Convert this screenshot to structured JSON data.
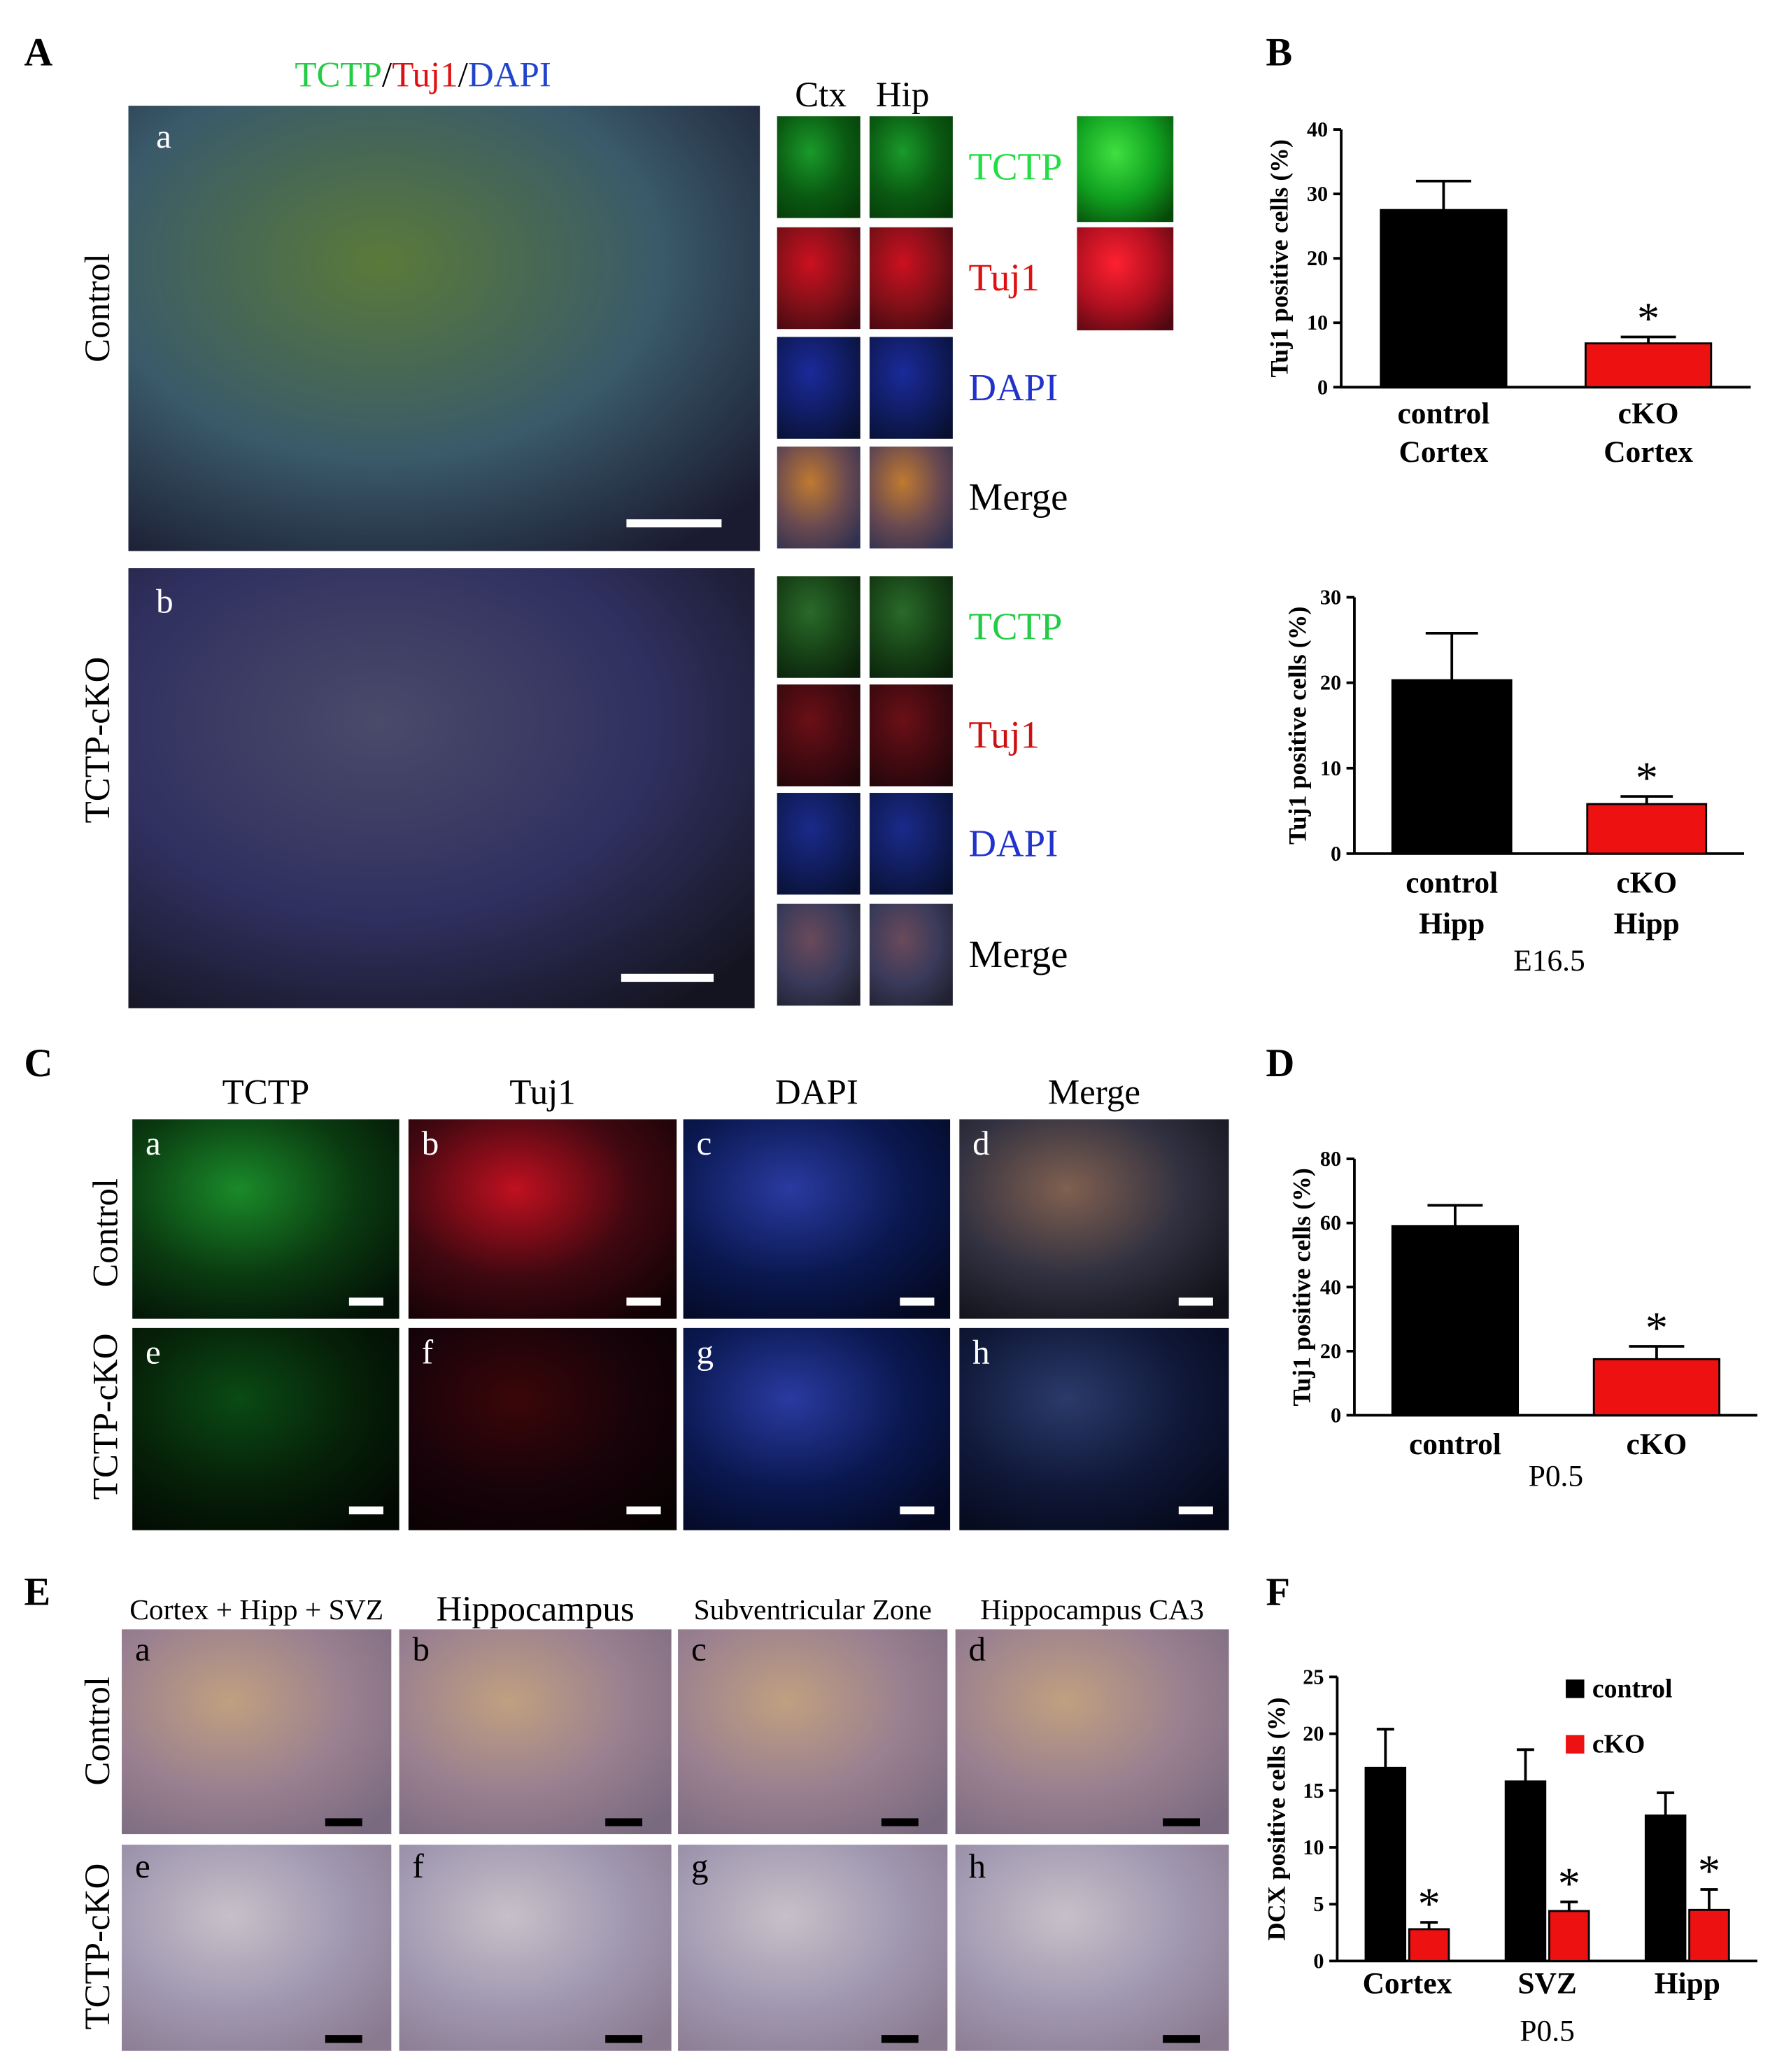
{
  "panel_labels": [
    "A",
    "B",
    "C",
    "D",
    "E",
    "F"
  ],
  "panel_A": {
    "title_parts": [
      "TCTP",
      "/",
      "Tuj1",
      "/",
      "DAPI"
    ],
    "rows": [
      "Control",
      "TCTP-cKO"
    ],
    "tiles": [
      "a",
      "b"
    ],
    "inset_columns": [
      "Ctx",
      "Hip"
    ],
    "channels": [
      [
        "TCTP",
        "Tuj1",
        "DAPI",
        "Merge"
      ],
      [
        "TCTP",
        "Tuj1",
        "DAPI",
        "Merge"
      ]
    ]
  },
  "panel_C": {
    "columns": [
      "TCTP",
      "Tuj1",
      "DAPI",
      "Merge"
    ],
    "rows": [
      "Control",
      "TCTP-cKO"
    ],
    "tiles": [
      "a",
      "b",
      "c",
      "d",
      "e",
      "f",
      "g",
      "h"
    ]
  },
  "panel_E": {
    "columns": [
      "Cortex + Hipp + SVZ",
      "Hippocampus",
      "Subventricular Zone",
      "Hippocampus CA3"
    ],
    "rows": [
      "Control",
      "TCTP-cKO"
    ],
    "tiles": [
      "a",
      "b",
      "c",
      "d",
      "e",
      "f",
      "g",
      "h"
    ]
  },
  "chart_data": [
    {
      "type": "bar",
      "ylabel": "Tuj1 positive cells (%)",
      "categories": [
        [
          "control",
          "Cortex"
        ],
        [
          "cKO",
          "Cortex"
        ]
      ],
      "values": [
        27.5,
        6.8
      ],
      "errors": [
        4.5,
        1
      ],
      "significance": [
        null,
        "*"
      ],
      "colors": [
        "#000000",
        "#ee1111"
      ],
      "ylim": [
        0,
        40
      ],
      "yticks": [
        0,
        10,
        20,
        30,
        40
      ]
    },
    {
      "type": "bar",
      "ylabel": "Tuj1 positive cells (%)",
      "xlabel": "E16.5",
      "categories": [
        [
          "control",
          "Hipp"
        ],
        [
          "cKO",
          "Hipp"
        ]
      ],
      "values": [
        20.3,
        5.8
      ],
      "errors": [
        5.5,
        0.9
      ],
      "significance": [
        null,
        "*"
      ],
      "colors": [
        "#000000",
        "#ee1111"
      ],
      "ylim": [
        0,
        30
      ],
      "yticks": [
        0,
        10,
        20,
        30
      ]
    },
    {
      "type": "bar",
      "ylabel": "Tuj1 positive cells (%)",
      "xlabel": "P0.5",
      "categories": [
        "control",
        "cKO"
      ],
      "values": [
        59,
        17.5
      ],
      "errors": [
        6.5,
        4
      ],
      "significance": [
        null,
        "*"
      ],
      "colors": [
        "#000000",
        "#ee1111"
      ],
      "ylim": [
        0,
        80
      ],
      "yticks": [
        0,
        20,
        40,
        60,
        80
      ]
    },
    {
      "type": "bar",
      "ylabel": "DCX positive cells (%)",
      "xlabel": "P0.5",
      "categories": [
        "Cortex",
        "SVZ",
        "Hipp"
      ],
      "legend": "upper right",
      "series": [
        {
          "name": "control",
          "color": "#000000",
          "values": [
            17,
            15.8,
            12.8
          ],
          "errors": [
            3.4,
            2.8,
            2
          ],
          "significance": [
            null,
            null,
            null
          ]
        },
        {
          "name": "cKO",
          "color": "#ee1111",
          "values": [
            2.8,
            4.4,
            4.5
          ],
          "errors": [
            0.6,
            0.8,
            1.8
          ],
          "significance": [
            "*",
            "*",
            "*"
          ]
        }
      ],
      "ylim": [
        0,
        25
      ],
      "yticks": [
        0,
        5,
        10,
        15,
        20,
        25
      ]
    }
  ]
}
